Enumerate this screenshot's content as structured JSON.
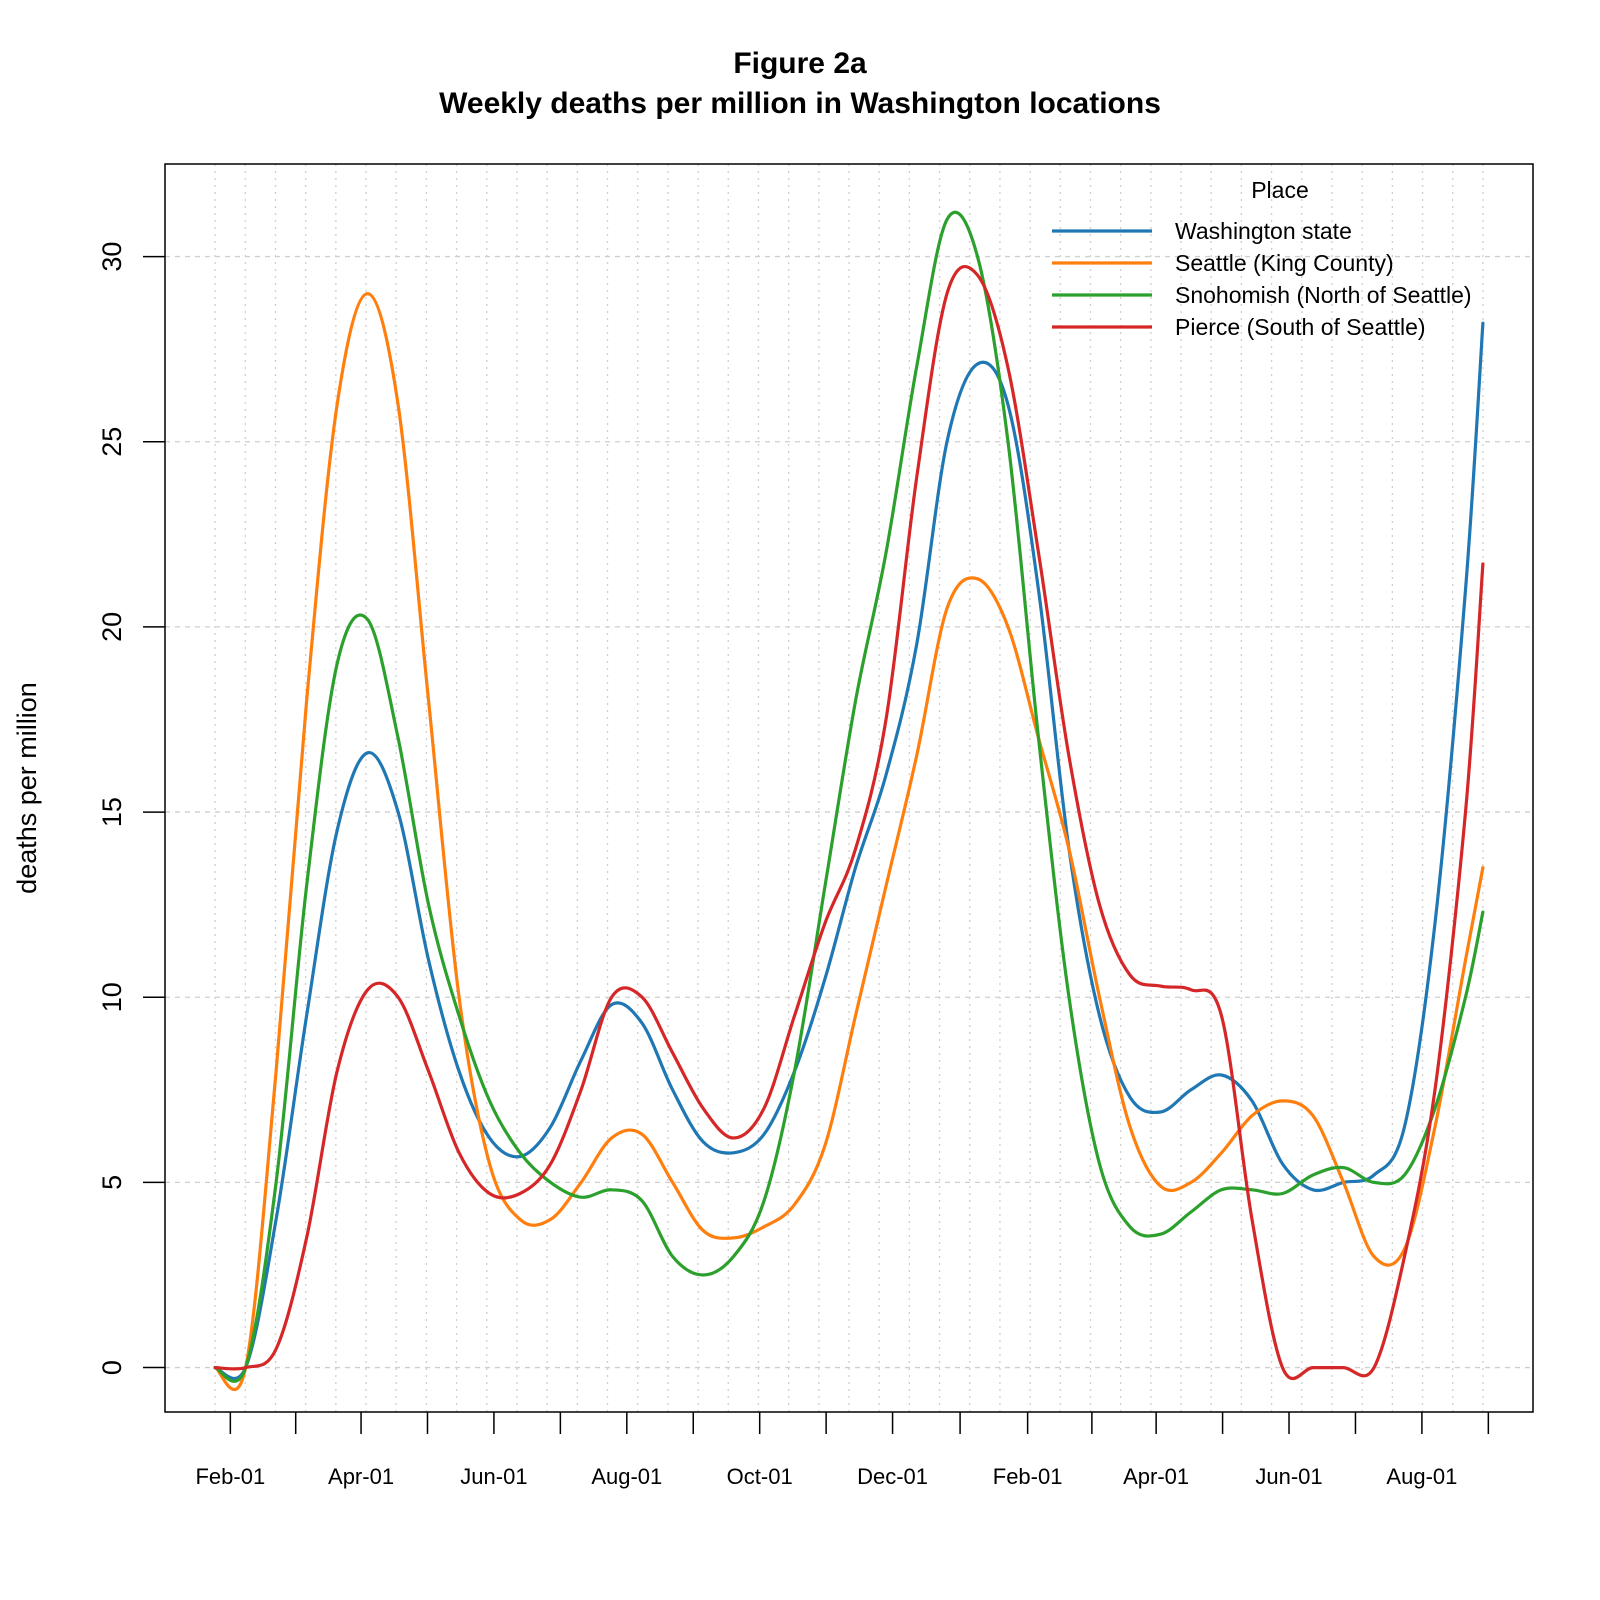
{
  "title": "Figure 2a",
  "subtitle": "Weekly deaths per million in Washington locations",
  "legend": {
    "title": "Place",
    "entries": [
      "Washington state",
      "Seattle (King County)",
      "Snohomish (North of Seattle)",
      "Pierce (South of Seattle)"
    ]
  },
  "chart_data": {
    "type": "line",
    "title": "Figure 2a",
    "subtitle": "Weekly deaths per million in Washington locations",
    "xlabel": "",
    "ylabel": "deaths per million",
    "x_tick_labels": [
      "Feb-01",
      "Apr-01",
      "Jun-01",
      "Aug-01",
      "Oct-01",
      "Dec-01",
      "Feb-01",
      "Apr-01",
      "Jun-01",
      "Aug-01"
    ],
    "x_tick_dates": [
      "2020-02-01",
      "2020-04-01",
      "2020-06-01",
      "2020-08-01",
      "2020-10-01",
      "2020-12-01",
      "2021-02-01",
      "2021-04-01",
      "2021-06-01",
      "2021-08-01"
    ],
    "x_range": [
      "2020-01-25",
      "2021-08-29"
    ],
    "xlim": [
      "2020-01-02",
      "2021-09-21"
    ],
    "y_ticks": [
      0,
      5,
      10,
      15,
      20,
      25,
      30
    ],
    "ylim": [
      -1.2,
      32.5
    ],
    "grid": true,
    "legend_position": "top-right",
    "series": [
      {
        "name": "Washington state",
        "color": "#1f77b4",
        "points": [
          [
            "2020-01-25",
            0
          ],
          [
            "2020-02-08",
            0
          ],
          [
            "2020-02-22",
            4
          ],
          [
            "2020-03-07",
            9.5
          ],
          [
            "2020-03-21",
            14.5
          ],
          [
            "2020-04-04",
            16.6
          ],
          [
            "2020-04-18",
            15
          ],
          [
            "2020-05-02",
            11
          ],
          [
            "2020-05-16",
            8
          ],
          [
            "2020-05-30",
            6.2
          ],
          [
            "2020-06-13",
            5.7
          ],
          [
            "2020-06-27",
            6.5
          ],
          [
            "2020-07-11",
            8.3
          ],
          [
            "2020-07-25",
            9.8
          ],
          [
            "2020-08-08",
            9.3
          ],
          [
            "2020-08-22",
            7.5
          ],
          [
            "2020-09-05",
            6.1
          ],
          [
            "2020-09-19",
            5.8
          ],
          [
            "2020-10-03",
            6.3
          ],
          [
            "2020-10-17",
            8
          ],
          [
            "2020-10-31",
            10.5
          ],
          [
            "2020-11-14",
            13.5
          ],
          [
            "2020-11-28",
            16
          ],
          [
            "2020-12-12",
            19.5
          ],
          [
            "2020-12-26",
            25
          ],
          [
            "2021-01-09",
            27.1
          ],
          [
            "2021-01-23",
            26
          ],
          [
            "2021-02-06",
            21
          ],
          [
            "2021-02-20",
            14
          ],
          [
            "2021-03-06",
            9.5
          ],
          [
            "2021-03-20",
            7.3
          ],
          [
            "2021-04-03",
            6.9
          ],
          [
            "2021-04-17",
            7.5
          ],
          [
            "2021-05-01",
            7.9
          ],
          [
            "2021-05-15",
            7.2
          ],
          [
            "2021-05-29",
            5.5
          ],
          [
            "2021-06-12",
            4.8
          ],
          [
            "2021-06-26",
            5
          ],
          [
            "2021-07-10",
            5.2
          ],
          [
            "2021-07-24",
            6.5
          ],
          [
            "2021-08-07",
            12
          ],
          [
            "2021-08-21",
            21
          ],
          [
            "2021-08-29",
            28.2
          ]
        ]
      },
      {
        "name": "Seattle (King County)",
        "color": "#ff7f0e",
        "points": [
          [
            "2020-01-25",
            0
          ],
          [
            "2020-02-08",
            0
          ],
          [
            "2020-02-22",
            8
          ],
          [
            "2020-03-07",
            18
          ],
          [
            "2020-03-21",
            26
          ],
          [
            "2020-04-04",
            29
          ],
          [
            "2020-04-18",
            26
          ],
          [
            "2020-05-02",
            18
          ],
          [
            "2020-05-16",
            10
          ],
          [
            "2020-05-30",
            5.5
          ],
          [
            "2020-06-13",
            4
          ],
          [
            "2020-06-27",
            4
          ],
          [
            "2020-07-11",
            5
          ],
          [
            "2020-07-25",
            6.2
          ],
          [
            "2020-08-08",
            6.3
          ],
          [
            "2020-08-22",
            5
          ],
          [
            "2020-09-05",
            3.7
          ],
          [
            "2020-09-19",
            3.5
          ],
          [
            "2020-10-03",
            3.8
          ],
          [
            "2020-10-17",
            4.4
          ],
          [
            "2020-10-31",
            6
          ],
          [
            "2020-11-14",
            9.5
          ],
          [
            "2020-11-28",
            13
          ],
          [
            "2020-12-12",
            16.5
          ],
          [
            "2020-12-26",
            20.5
          ],
          [
            "2021-01-09",
            21.3
          ],
          [
            "2021-01-23",
            20
          ],
          [
            "2021-02-06",
            17
          ],
          [
            "2021-02-20",
            14
          ],
          [
            "2021-03-06",
            10
          ],
          [
            "2021-03-20",
            6.5
          ],
          [
            "2021-04-03",
            4.9
          ],
          [
            "2021-04-17",
            5
          ],
          [
            "2021-05-01",
            5.8
          ],
          [
            "2021-05-15",
            6.8
          ],
          [
            "2021-05-29",
            7.2
          ],
          [
            "2021-06-12",
            6.8
          ],
          [
            "2021-06-26",
            5
          ],
          [
            "2021-07-10",
            3
          ],
          [
            "2021-07-24",
            3.2
          ],
          [
            "2021-08-07",
            6.5
          ],
          [
            "2021-08-21",
            11
          ],
          [
            "2021-08-29",
            13.5
          ]
        ]
      },
      {
        "name": "Snohomish (North of Seattle)",
        "color": "#2ca02c",
        "points": [
          [
            "2020-01-25",
            0
          ],
          [
            "2020-02-08",
            0
          ],
          [
            "2020-02-22",
            5
          ],
          [
            "2020-03-07",
            13
          ],
          [
            "2020-03-21",
            19
          ],
          [
            "2020-04-04",
            20.2
          ],
          [
            "2020-04-18",
            17
          ],
          [
            "2020-05-02",
            12.5
          ],
          [
            "2020-05-16",
            9.5
          ],
          [
            "2020-05-30",
            7.2
          ],
          [
            "2020-06-13",
            5.8
          ],
          [
            "2020-06-27",
            5
          ],
          [
            "2020-07-11",
            4.6
          ],
          [
            "2020-07-25",
            4.8
          ],
          [
            "2020-08-08",
            4.5
          ],
          [
            "2020-08-22",
            3
          ],
          [
            "2020-09-05",
            2.5
          ],
          [
            "2020-09-19",
            3
          ],
          [
            "2020-10-03",
            4.5
          ],
          [
            "2020-10-17",
            8
          ],
          [
            "2020-10-31",
            13
          ],
          [
            "2020-11-14",
            18
          ],
          [
            "2020-11-28",
            22
          ],
          [
            "2020-12-12",
            27
          ],
          [
            "2020-12-26",
            31
          ],
          [
            "2021-01-09",
            30
          ],
          [
            "2021-01-23",
            25
          ],
          [
            "2021-02-06",
            17
          ],
          [
            "2021-02-20",
            10
          ],
          [
            "2021-03-06",
            5.5
          ],
          [
            "2021-03-20",
            3.8
          ],
          [
            "2021-04-03",
            3.6
          ],
          [
            "2021-04-17",
            4.2
          ],
          [
            "2021-05-01",
            4.8
          ],
          [
            "2021-05-15",
            4.8
          ],
          [
            "2021-05-29",
            4.7
          ],
          [
            "2021-06-12",
            5.2
          ],
          [
            "2021-06-26",
            5.4
          ],
          [
            "2021-07-10",
            5
          ],
          [
            "2021-07-24",
            5.2
          ],
          [
            "2021-08-07",
            7
          ],
          [
            "2021-08-21",
            10
          ],
          [
            "2021-08-29",
            12.3
          ]
        ]
      },
      {
        "name": "Pierce (South of Seattle)",
        "color": "#d62728",
        "points": [
          [
            "2020-01-25",
            0
          ],
          [
            "2020-02-08",
            0
          ],
          [
            "2020-02-22",
            0.5
          ],
          [
            "2020-03-07",
            3.5
          ],
          [
            "2020-03-21",
            8
          ],
          [
            "2020-04-04",
            10.2
          ],
          [
            "2020-04-18",
            10
          ],
          [
            "2020-05-02",
            8
          ],
          [
            "2020-05-16",
            5.8
          ],
          [
            "2020-05-30",
            4.7
          ],
          [
            "2020-06-13",
            4.7
          ],
          [
            "2020-06-27",
            5.5
          ],
          [
            "2020-07-11",
            7.5
          ],
          [
            "2020-07-25",
            10
          ],
          [
            "2020-08-08",
            10
          ],
          [
            "2020-08-22",
            8.5
          ],
          [
            "2020-09-05",
            7
          ],
          [
            "2020-09-19",
            6.2
          ],
          [
            "2020-10-03",
            7
          ],
          [
            "2020-10-17",
            9.5
          ],
          [
            "2020-10-31",
            12
          ],
          [
            "2020-11-14",
            14
          ],
          [
            "2020-11-28",
            17.5
          ],
          [
            "2020-12-12",
            24
          ],
          [
            "2020-12-26",
            29
          ],
          [
            "2021-01-09",
            29.5
          ],
          [
            "2021-01-23",
            27
          ],
          [
            "2021-02-06",
            22
          ],
          [
            "2021-02-20",
            16.5
          ],
          [
            "2021-03-06",
            12.5
          ],
          [
            "2021-03-20",
            10.6
          ],
          [
            "2021-04-03",
            10.3
          ],
          [
            "2021-04-17",
            10.2
          ],
          [
            "2021-05-01",
            9.5
          ],
          [
            "2021-05-15",
            4
          ],
          [
            "2021-05-29",
            0
          ],
          [
            "2021-06-12",
            0
          ],
          [
            "2021-06-26",
            0
          ],
          [
            "2021-07-10",
            0
          ],
          [
            "2021-07-24",
            3
          ],
          [
            "2021-08-07",
            7.5
          ],
          [
            "2021-08-21",
            15
          ],
          [
            "2021-08-29",
            21.7
          ]
        ]
      }
    ]
  }
}
